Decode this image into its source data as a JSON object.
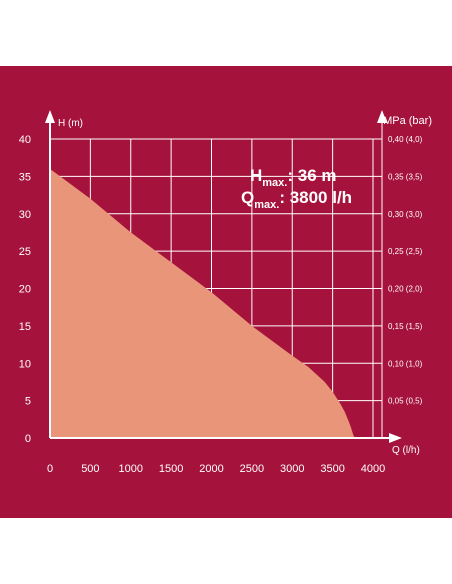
{
  "chart_data": {
    "type": "area",
    "ylabel": "H (m)",
    "xlabel": "Q (l/h)",
    "right_axis_label": "MPa (bar)",
    "xlim": [
      0,
      4000
    ],
    "ylim": [
      0,
      40
    ],
    "x_ticks": [
      "0",
      "500",
      "1000",
      "1500",
      "2000",
      "2500",
      "3000",
      "3500",
      "4000"
    ],
    "y_ticks": [
      "0",
      "5",
      "10",
      "15",
      "20",
      "25",
      "30",
      "35",
      "40"
    ],
    "right_ticks": [
      "0,05 (0,5)",
      "0,10 (1,0)",
      "0,15 (1,5)",
      "0,20 (2,0)",
      "0,25 (2,5)",
      "0,30 (3,0)",
      "0,35 (3,5)",
      "0,40 (4,0)"
    ],
    "right_tick_values": [
      5,
      10,
      15,
      20,
      25,
      30,
      35,
      40
    ],
    "grid": true,
    "fill_color": "#e8957a",
    "background_color": "#a5123c",
    "series": [
      {
        "x": [
          0,
          500,
          1000,
          1500,
          2000,
          2500,
          3000,
          3200,
          3400,
          3500,
          3600,
          3650,
          3700,
          3730,
          3750,
          3760,
          3780
        ],
        "y": [
          36,
          32,
          27.5,
          23.5,
          19.5,
          15,
          11,
          9.5,
          7.5,
          6.2,
          4.5,
          3.5,
          2.2,
          1.3,
          0.6,
          0.3,
          0
        ]
      }
    ],
    "annotations": {
      "hmax_main": "H",
      "hmax_sub": "max.",
      "hmax_value": ": 36 m",
      "qmax_main": "Q",
      "qmax_sub": "max.",
      "qmax_value": ": 3800 l/h"
    }
  }
}
